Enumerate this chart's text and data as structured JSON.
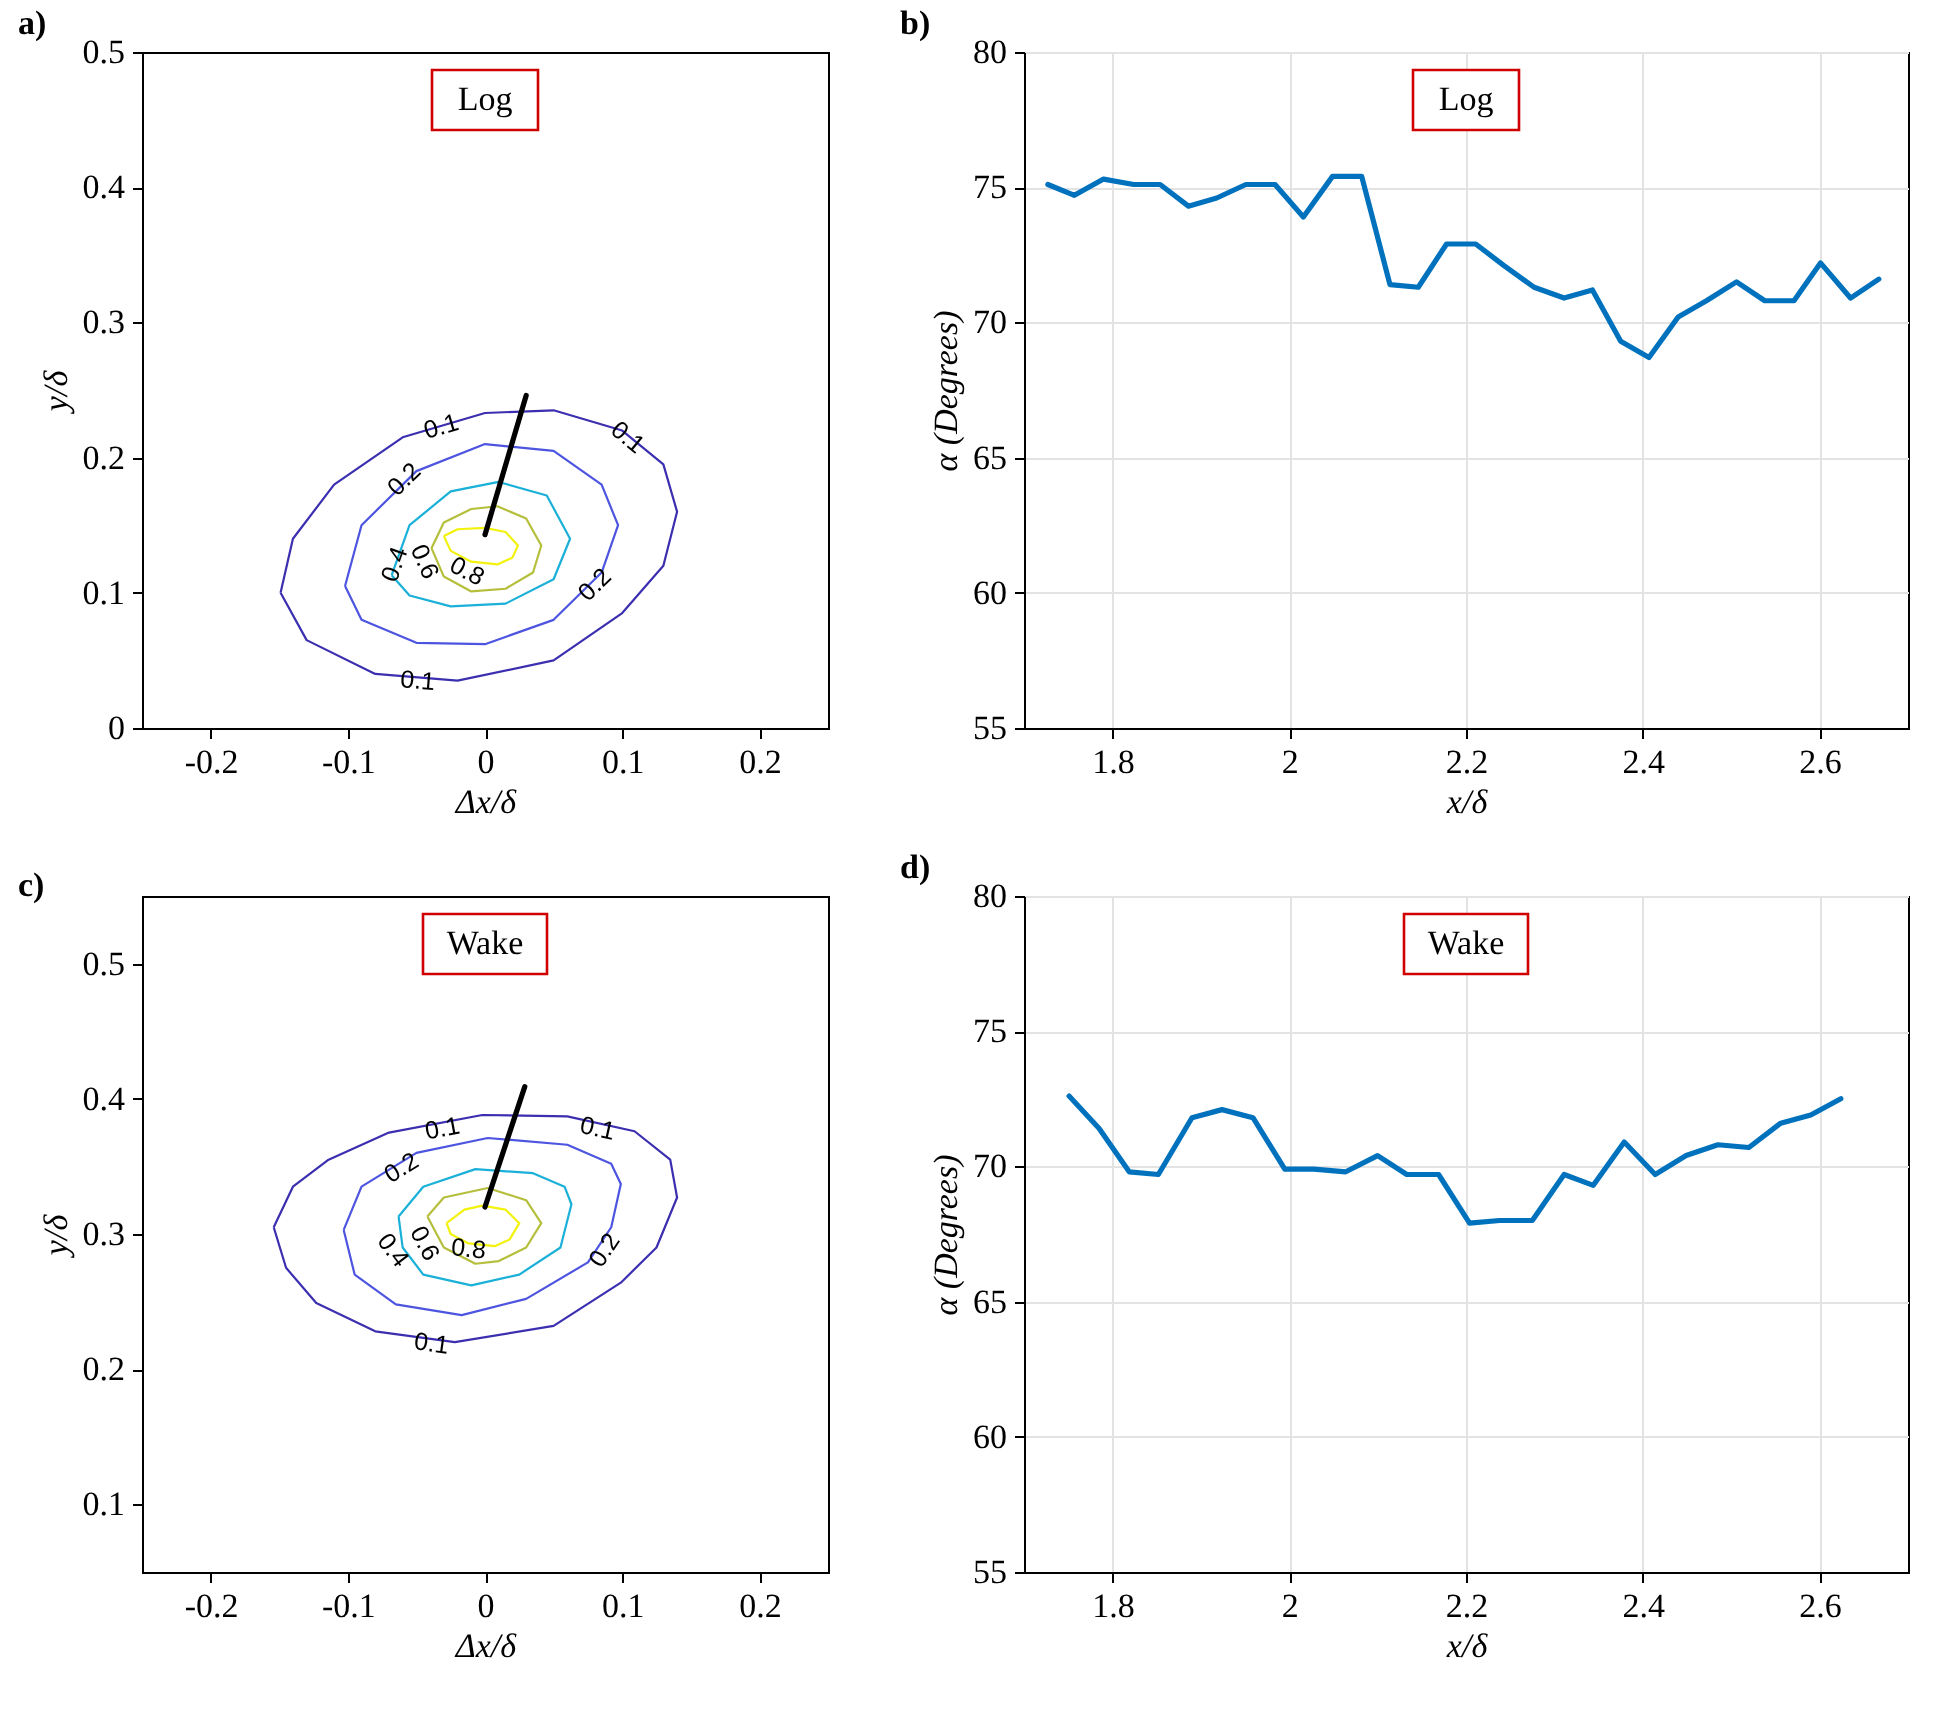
{
  "chart_data": [
    {
      "type": "line",
      "title": "a)",
      "xlabel": "Δx/δ",
      "ylabel": "y/δ",
      "xlim": [
        -0.25,
        0.25
      ],
      "xticks": [
        -0.2,
        -0.1,
        0,
        0.1,
        0.2
      ],
      "ylim": [
        0,
        0.5
      ],
      "yticks": [
        0,
        0.1,
        0.2,
        0.3,
        0.4,
        0.5
      ],
      "annotations": [
        "Log",
        "0.1",
        "0.1",
        "0.1",
        "0.2",
        "0.2",
        "0.4",
        "0.6",
        "0.8"
      ],
      "series": [
        {
          "color": "#000000",
          "x": [
            0,
            0.03
          ],
          "values": [
            0.143,
            0.246
          ]
        }
      ]
    },
    {
      "type": "line",
      "title": "b)",
      "xlabel": "x/δ",
      "ylabel": "α (Degrees)",
      "xlim": [
        1.7,
        2.7
      ],
      "xticks": [
        1.8,
        2,
        2.2,
        2.4,
        2.6
      ],
      "ylim": [
        55,
        80
      ],
      "yticks": [
        55,
        60,
        65,
        70,
        75,
        80
      ],
      "grid": true,
      "annotations": [
        "Log"
      ],
      "series": [
        {
          "color": "#0072bd",
          "x": [
            1.727,
            1.757,
            1.79,
            1.824,
            1.854,
            1.886,
            1.918,
            1.951,
            1.984,
            2.016,
            2.049,
            2.082,
            2.114,
            2.146,
            2.178,
            2.211,
            2.243,
            2.277,
            2.311,
            2.343,
            2.375,
            2.407,
            2.44,
            2.472,
            2.506,
            2.538,
            2.571,
            2.601,
            2.635,
            2.667
          ],
          "values": [
            75.1,
            74.7,
            75.3,
            75.1,
            75.1,
            74.3,
            74.6,
            75.1,
            75.1,
            73.9,
            75.4,
            75.4,
            71.4,
            71.3,
            72.9,
            72.9,
            72.1,
            71.3,
            70.9,
            71.2,
            69.3,
            68.7,
            70.2,
            70.8,
            71.5,
            70.8,
            70.8,
            72.2,
            70.9,
            71.6
          ]
        }
      ]
    },
    {
      "type": "line",
      "title": "c)",
      "xlabel": "Δx/δ",
      "ylabel": "y/δ",
      "xlim": [
        -0.25,
        0.25
      ],
      "xticks": [
        -0.2,
        -0.1,
        0,
        0.1,
        0.2
      ],
      "ylim": [
        0.05,
        0.55
      ],
      "yticks": [
        0.1,
        0.2,
        0.3,
        0.4,
        0.5
      ],
      "annotations": [
        "Wake",
        "0.1",
        "0.1",
        "0.1",
        "0.2",
        "0.2",
        "0.4",
        "0.6",
        "0.8"
      ],
      "series": [
        {
          "color": "#000000",
          "x": [
            0,
            0.029
          ],
          "values": [
            0.32,
            0.409
          ]
        }
      ]
    },
    {
      "type": "line",
      "title": "d)",
      "xlabel": "x/δ",
      "ylabel": "α (Degrees)",
      "xlim": [
        1.7,
        2.7
      ],
      "xticks": [
        1.8,
        2,
        2.2,
        2.4,
        2.6
      ],
      "ylim": [
        55,
        80
      ],
      "yticks": [
        55,
        60,
        65,
        70,
        75,
        80
      ],
      "grid": true,
      "annotations": [
        "Wake"
      ],
      "series": [
        {
          "color": "#0072bd",
          "x": [
            1.751,
            1.785,
            1.819,
            1.852,
            1.89,
            1.924,
            1.959,
            1.995,
            2.028,
            2.064,
            2.1,
            2.133,
            2.169,
            2.204,
            2.238,
            2.275,
            2.311,
            2.344,
            2.379,
            2.414,
            2.449,
            2.485,
            2.52,
            2.556,
            2.59,
            2.624
          ],
          "values": [
            72.6,
            71.4,
            69.8,
            69.7,
            71.8,
            72.1,
            71.8,
            69.9,
            69.9,
            69.8,
            70.4,
            69.7,
            69.7,
            67.9,
            68.0,
            68.0,
            69.7,
            69.3,
            70.9,
            69.7,
            70.4,
            70.8,
            70.7,
            71.6,
            71.9,
            72.5
          ]
        }
      ]
    }
  ]
}
